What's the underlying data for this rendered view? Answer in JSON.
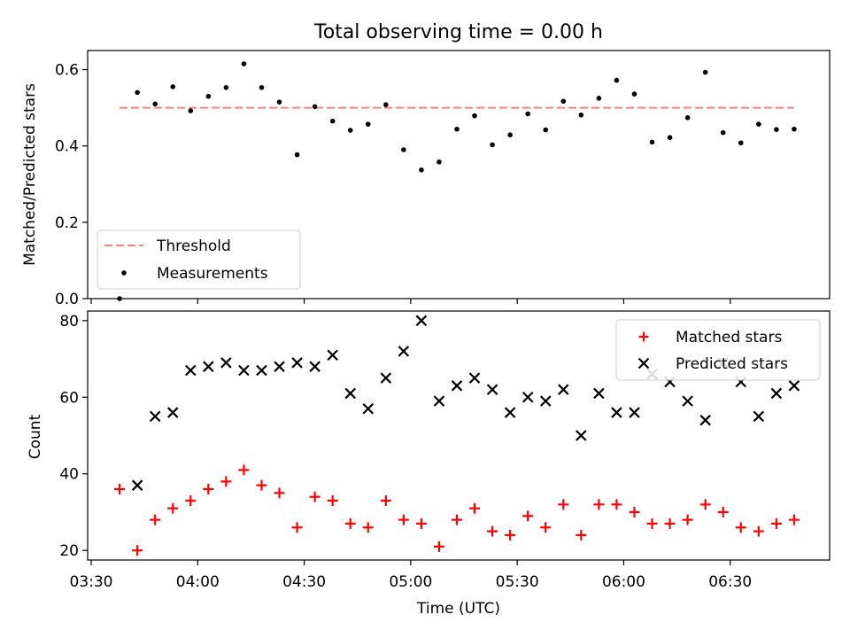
{
  "figure": {
    "title": "Total observing time = 0.00 h",
    "shared_xlabel": "Time (UTC)",
    "x_tick_labels": [
      "03:30",
      "04:00",
      "04:30",
      "05:00",
      "05:30",
      "06:00",
      "06:30"
    ]
  },
  "chart_data": [
    {
      "type": "scatter",
      "title": "Total observing time = 0.00 h",
      "xlabel": "",
      "ylabel": "Matched/Predicted stars",
      "x_unit": "time (UTC)",
      "x": [
        "03:38",
        "03:43",
        "03:48",
        "03:53",
        "03:58",
        "04:03",
        "04:08",
        "04:13",
        "04:18",
        "04:23",
        "04:28",
        "04:33",
        "04:38",
        "04:43",
        "04:48",
        "04:53",
        "04:58",
        "05:03",
        "05:08",
        "05:13",
        "05:18",
        "05:23",
        "05:28",
        "05:33",
        "05:38",
        "05:43",
        "05:48",
        "05:53",
        "05:58",
        "06:03",
        "06:08",
        "06:13",
        "06:18",
        "06:23",
        "06:28",
        "06:33",
        "06:38",
        "06:43",
        "06:48"
      ],
      "xlim": [
        "03:29",
        "06:58"
      ],
      "ylim": [
        0,
        0.65
      ],
      "y_ticks": [
        "0.0",
        "0.2",
        "0.4",
        "0.6"
      ],
      "series": [
        {
          "name": "Threshold",
          "kind": "line",
          "style": "dashed",
          "color": "#ff7f7f",
          "x": [
            "03:38",
            "06:48"
          ],
          "values": [
            0.5,
            0.5
          ]
        },
        {
          "name": "Measurements",
          "kind": "scatter",
          "marker": "dot",
          "color": "#000000",
          "values": [
            0.0,
            0.54,
            0.51,
            0.555,
            0.492,
            0.53,
            0.553,
            0.615,
            0.553,
            0.515,
            0.377,
            0.503,
            0.465,
            0.441,
            0.457,
            0.508,
            0.39,
            0.337,
            0.358,
            0.444,
            0.479,
            0.403,
            0.429,
            0.484,
            0.442,
            0.517,
            0.481,
            0.525,
            0.572,
            0.536,
            0.41,
            0.422,
            0.474,
            0.593,
            0.435,
            0.408,
            0.457,
            0.443,
            0.444
          ]
        }
      ],
      "legend": "lower-left",
      "grid": false
    },
    {
      "type": "scatter",
      "title": "",
      "xlabel": "Time (UTC)",
      "ylabel": "Count",
      "x_unit": "time (UTC)",
      "x": [
        "03:38",
        "03:43",
        "03:48",
        "03:53",
        "03:58",
        "04:03",
        "04:08",
        "04:13",
        "04:18",
        "04:23",
        "04:28",
        "04:33",
        "04:38",
        "04:43",
        "04:48",
        "04:53",
        "04:58",
        "05:03",
        "05:08",
        "05:13",
        "05:18",
        "05:23",
        "05:28",
        "05:33",
        "05:38",
        "05:43",
        "05:48",
        "05:53",
        "05:58",
        "06:03",
        "06:08",
        "06:13",
        "06:18",
        "06:23",
        "06:28",
        "06:33",
        "06:38",
        "06:43",
        "06:48"
      ],
      "xlim": [
        "03:29",
        "06:58"
      ],
      "ylim": [
        17.5,
        82.5
      ],
      "y_ticks": [
        "20",
        "40",
        "60",
        "80"
      ],
      "series": [
        {
          "name": "Matched stars",
          "kind": "scatter",
          "marker": "plus",
          "color": "#ff0000",
          "values": [
            36,
            20,
            28,
            31,
            33,
            36,
            38,
            41,
            37,
            35,
            26,
            34,
            33,
            27,
            26,
            33,
            28,
            27,
            21,
            28,
            31,
            25,
            24,
            29,
            26,
            32,
            24,
            32,
            32,
            30,
            27,
            27,
            28,
            32,
            30,
            26,
            25,
            27,
            28
          ]
        },
        {
          "name": "Predicted stars",
          "kind": "scatter",
          "marker": "x",
          "color": "#000000",
          "x": [
            "03:43",
            "03:48",
            "03:53",
            "03:58",
            "04:03",
            "04:08",
            "04:13",
            "04:18",
            "04:23",
            "04:28",
            "04:33",
            "04:38",
            "04:43",
            "04:48",
            "04:53",
            "04:58",
            "05:03",
            "05:08",
            "05:13",
            "05:18",
            "05:23",
            "05:28",
            "05:33",
            "05:38",
            "05:43",
            "05:48",
            "05:53",
            "05:58",
            "06:03",
            "06:08",
            "06:13",
            "06:18",
            "06:23",
            "06:28",
            "06:33",
            "06:38",
            "06:43",
            "06:48"
          ],
          "values": [
            37,
            55,
            56,
            67,
            68,
            69,
            67,
            67,
            68,
            69,
            68,
            71,
            61,
            57,
            65,
            72,
            80,
            59,
            63,
            65,
            62,
            56,
            60,
            59,
            62,
            50,
            61,
            56,
            56,
            66,
            64,
            59,
            54,
            69,
            64,
            55,
            61,
            63
          ]
        }
      ],
      "legend": "top-right",
      "grid": false
    }
  ]
}
